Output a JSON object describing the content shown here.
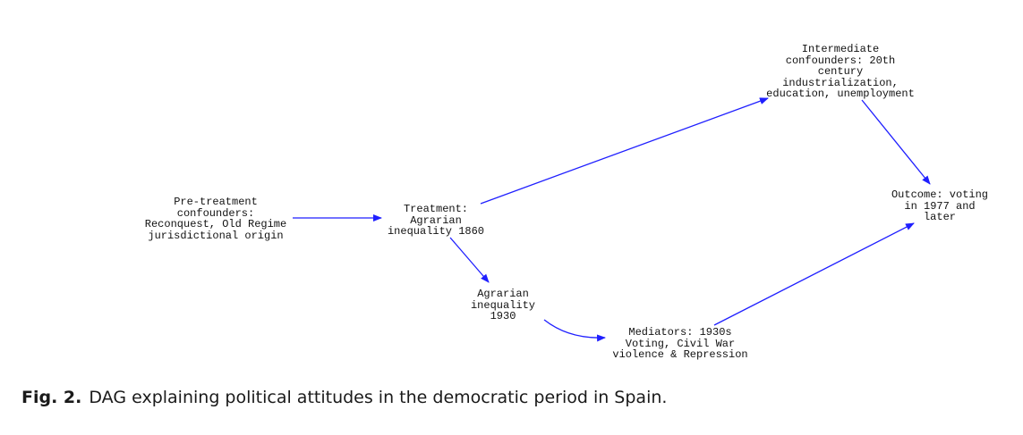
{
  "diagram": {
    "nodes": {
      "pre_treatment": "Pre-treatment\nconfounders:\nReconquest, Old Regime\njurisdictional origin",
      "treatment": "Treatment:\nAgrarian\ninequality 1860",
      "intermediate": "Intermediate\nconfounders: 20th\ncentury\nindustrialization,\neducation, unemployment",
      "agrarian_1930": "Agrarian\ninequality\n1930",
      "mediators": "Mediators: 1930s\nVoting, Civil War\nviolence & Repression",
      "outcome": "Outcome: voting\nin 1977 and\nlater"
    },
    "edges": [
      {
        "from": "pre_treatment",
        "to": "treatment"
      },
      {
        "from": "treatment",
        "to": "intermediate"
      },
      {
        "from": "treatment",
        "to": "agrarian_1930"
      },
      {
        "from": "intermediate",
        "to": "outcome"
      },
      {
        "from": "agrarian_1930",
        "to": "mediators"
      },
      {
        "from": "mediators",
        "to": "outcome"
      }
    ],
    "edge_color": "#1f1fff"
  },
  "caption": {
    "label": "Fig. 2.",
    "text": "DAG explaining political attitudes in the democratic period in Spain."
  }
}
